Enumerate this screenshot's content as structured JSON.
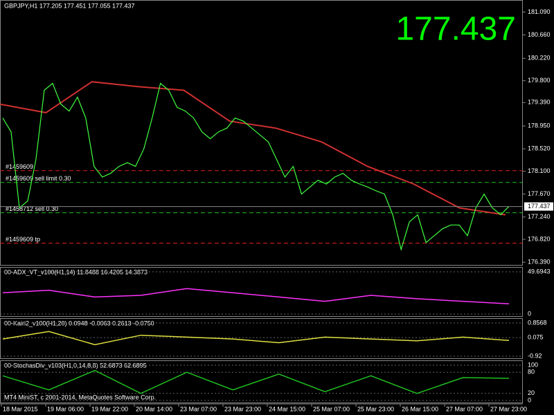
{
  "header": "GBPJPY,H1  177.205 177.451 177.055 177.437",
  "big_price": "177.437",
  "main": {
    "ylim": [
      176.34,
      181.29
    ],
    "yticks": [
      {
        "value": 181.09,
        "label": "181.090"
      },
      {
        "value": 180.66,
        "label": "180.660"
      },
      {
        "value": 180.22,
        "label": "180.220"
      },
      {
        "value": 179.8,
        "label": "179.800"
      },
      {
        "value": 179.39,
        "label": "179.390"
      },
      {
        "value": 178.95,
        "label": "178.950"
      },
      {
        "value": 178.52,
        "label": "178.520"
      },
      {
        "value": 178.1,
        "label": "178.100"
      },
      {
        "value": 177.67,
        "label": "177.670"
      },
      {
        "value": 177.24,
        "label": "177.240"
      },
      {
        "value": 176.82,
        "label": "176.820"
      },
      {
        "value": 176.39,
        "label": "176.390"
      }
    ],
    "close": [
      179.1,
      178.84,
      177.41,
      177.54,
      178.32,
      179.62,
      179.75,
      179.36,
      179.23,
      179.49,
      179.1,
      178.19,
      177.99,
      178.06,
      178.19,
      178.26,
      178.19,
      178.52,
      179.1,
      179.75,
      179.62,
      179.3,
      179.23,
      179.1,
      178.84,
      178.71,
      178.84,
      178.91,
      179.1,
      179.04,
      178.91,
      178.78,
      178.65,
      178.32,
      177.99,
      178.19,
      177.67,
      177.8,
      177.93,
      177.86,
      177.99,
      178.06,
      177.93,
      177.86,
      177.8,
      177.73,
      177.67,
      177.28,
      176.63,
      177.15,
      177.28,
      176.76,
      176.89,
      177.02,
      177.09,
      177.09,
      176.89,
      177.41,
      177.67,
      177.41,
      177.28,
      177.44
    ],
    "ma": [
      179.36,
      179.2,
      179.78,
      179.69,
      179.62,
      179.04,
      178.91,
      178.65,
      178.19,
      177.86,
      177.41,
      177.28
    ],
    "current": {
      "value": 177.437,
      "label": "177.437"
    },
    "levels": [
      {
        "price": 178.11,
        "label": "#1459609",
        "color": "#e02020"
      },
      {
        "price": 177.89,
        "label": "#1459609 sell limit 0.30",
        "color": "#20c020"
      },
      {
        "price": 177.32,
        "label": "#1458712 sell 0.30",
        "color": "#20c020"
      },
      {
        "price": 176.75,
        "label": "#1459609 tp",
        "color": "#e02020"
      }
    ]
  },
  "panes": [
    {
      "label": "00-ADX_VT_v100(H1,14) 11.8488 16.4205 14.3873",
      "ylim": [
        0,
        49.6943
      ],
      "yticks": [
        49.6943,
        0
      ],
      "color": "#ff33ff",
      "values": [
        25,
        28,
        20,
        22,
        30,
        25,
        20,
        15,
        22,
        18,
        15,
        12
      ]
    },
    {
      "label": "00-Kairi2_v100(H1,20) 0.0948 -0.0063 0.2613 -0.0750",
      "ylim": [
        -0.92,
        0.8568
      ],
      "yticks": [
        0.8568,
        0.075,
        -0.92
      ],
      "color": "#e0e040",
      "values": [
        0,
        0.4,
        -0.3,
        0.2,
        0.1,
        0,
        -0.2,
        0.1,
        0,
        -0.1,
        0.1,
        -0.075
      ]
    },
    {
      "label": "00-StochasDiv_v103(H1,0,14,8,8) 52.6873 62.6895",
      "ylim": [
        0,
        100
      ],
      "yticks": [
        100,
        80,
        20,
        0
      ],
      "color": "#20c020",
      "values": [
        70,
        30,
        85,
        20,
        80,
        30,
        75,
        25,
        70,
        20,
        65,
        62.6895
      ]
    }
  ],
  "footer": "MT4 MiniST, c 2001-2014, MetaQuotes Software Corp.",
  "xlabels": [
    "18 Mar 2015",
    "19 Mar 06:00",
    "19 Mar 22:00",
    "20 Mar 14:00",
    "23 Mar 07:00",
    "23 Mar 23:00",
    "24 Mar 15:00",
    "25 Mar 07:00",
    "25 Mar 23:00",
    "26 Mar 15:00",
    "27 Mar 07:00",
    "27 Mar 23:00"
  ]
}
